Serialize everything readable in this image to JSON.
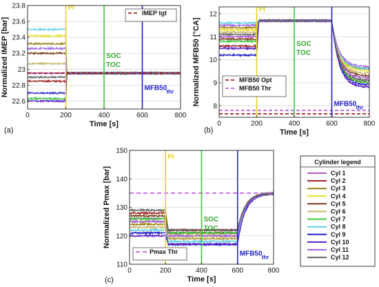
{
  "figure": {
    "legend_title": "Cylinder legend",
    "legend": [
      {
        "label": "Cyl 1",
        "color": "#b05ac8"
      },
      {
        "label": "Cyl 2",
        "color": "#a01e1e"
      },
      {
        "label": "Cyl 3",
        "color": "#9a7a0a"
      },
      {
        "label": "Cyl 4",
        "color": "#e6e022"
      },
      {
        "label": "Cyl 5",
        "color": "#7a3a1a"
      },
      {
        "label": "Cyl 6",
        "color": "#c8b46e"
      },
      {
        "label": "Cyl 7",
        "color": "#3bc83b"
      },
      {
        "label": "Cyl 8",
        "color": "#5ecfe6"
      },
      {
        "label": "Cyl 9",
        "color": "#2020c8"
      },
      {
        "label": "Cyl 10",
        "color": "#5a1ec8"
      },
      {
        "label": "Cyl 11",
        "color": "#a064e6"
      },
      {
        "label": "Cyl 12",
        "color": "#606060"
      }
    ]
  },
  "chart_data": [
    {
      "id": "a",
      "panel_label": "(a)",
      "type": "line",
      "xlabel": "Time [s]",
      "ylabel": "Normalized IMEP [bar]",
      "xlim": [
        0,
        800
      ],
      "ylim": [
        22.5,
        23.8
      ],
      "xticks": [
        0,
        200,
        400,
        600,
        800
      ],
      "yticks": [
        22.6,
        22.8,
        23,
        23.2,
        23.4,
        23.6,
        23.8
      ],
      "grid": true,
      "transition": "drop",
      "series": [
        {
          "name": "Cyl 1",
          "color": "#b05ac8",
          "values": [
            22.95,
            22.95
          ]
        },
        {
          "name": "Cyl 2",
          "color": "#a01e1e",
          "values": [
            22.85,
            22.95
          ]
        },
        {
          "name": "Cyl 3",
          "color": "#9a7a0a",
          "values": [
            23.32,
            22.95
          ]
        },
        {
          "name": "Cyl 4",
          "color": "#e6e022",
          "values": [
            23.42,
            22.95
          ]
        },
        {
          "name": "Cyl 5",
          "color": "#7a3a1a",
          "values": [
            23.2,
            22.95
          ]
        },
        {
          "name": "Cyl 6",
          "color": "#c8b46e",
          "values": [
            23.07,
            22.95
          ]
        },
        {
          "name": "Cyl 7",
          "color": "#3bc83b",
          "values": [
            22.63,
            22.95
          ]
        },
        {
          "name": "Cyl 8",
          "color": "#5ecfe6",
          "values": [
            23.5,
            22.95
          ]
        },
        {
          "name": "Cyl 9",
          "color": "#2020c8",
          "values": [
            22.7,
            22.95
          ]
        },
        {
          "name": "Cyl 10",
          "color": "#5a1ec8",
          "values": [
            22.6,
            22.95
          ]
        },
        {
          "name": "Cyl 11",
          "color": "#a064e6",
          "values": [
            23.26,
            22.95
          ]
        },
        {
          "name": "Cyl 12",
          "color": "#606060",
          "values": [
            22.9,
            22.95
          ]
        }
      ],
      "hlines": [
        {
          "name": "IMEP tgt",
          "y": 22.95,
          "color": "#a01e1e",
          "dash": "5,3"
        }
      ],
      "vlines": [
        {
          "x": 200,
          "color": "#e6d21e",
          "label": "PI",
          "label_color": "#e6d21e",
          "label_y": 23.75
        },
        {
          "x": 400,
          "color": "#3bc83b",
          "label": "SOC",
          "label2": "TOC",
          "label_color": "#2faa2f",
          "label_y": 23.14
        },
        {
          "x": 600,
          "color": "#2020c8",
          "label": "MFB50",
          "sub": "thr",
          "label_color": "#2020c8",
          "label_y": 22.74
        }
      ],
      "legend": {
        "placement": "top-right",
        "entries": [
          "IMEP tgt"
        ]
      }
    },
    {
      "id": "b",
      "panel_label": "(b)",
      "type": "line",
      "xlabel": "Time [s]",
      "ylabel": "Normalized MFB50 [°CA]",
      "xlim": [
        0,
        800
      ],
      "ylim": [
        7.5,
        12.3
      ],
      "xticks": [
        0,
        200,
        400,
        600,
        800
      ],
      "yticks": [
        8,
        9,
        10,
        11,
        12
      ],
      "grid": true,
      "transition": "rise-then-fall",
      "series": [
        {
          "name": "Cyl 1",
          "color": "#b05ac8",
          "values": [
            11.0,
            11.7,
            9.2
          ]
        },
        {
          "name": "Cyl 2",
          "color": "#a01e1e",
          "values": [
            10.6,
            11.7,
            9.0
          ]
        },
        {
          "name": "Cyl 3",
          "color": "#9a7a0a",
          "values": [
            11.4,
            11.7,
            9.6
          ]
        },
        {
          "name": "Cyl 4",
          "color": "#e6e022",
          "values": [
            11.3,
            11.7,
            9.5
          ]
        },
        {
          "name": "Cyl 5",
          "color": "#7a3a1a",
          "values": [
            10.9,
            11.7,
            9.3
          ]
        },
        {
          "name": "Cyl 6",
          "color": "#c8b46e",
          "values": [
            11.2,
            11.7,
            9.4
          ]
        },
        {
          "name": "Cyl 7",
          "color": "#3bc83b",
          "values": [
            10.8,
            11.7,
            9.0
          ]
        },
        {
          "name": "Cyl 8",
          "color": "#5ecfe6",
          "values": [
            11.6,
            11.7,
            9.6
          ]
        },
        {
          "name": "Cyl 9",
          "color": "#2020c8",
          "values": [
            10.2,
            11.7,
            8.9
          ]
        },
        {
          "name": "Cyl 10",
          "color": "#5a1ec8",
          "values": [
            10.5,
            11.7,
            8.8
          ]
        },
        {
          "name": "Cyl 11",
          "color": "#a064e6",
          "values": [
            11.5,
            11.7,
            9.7
          ]
        },
        {
          "name": "Cyl 12",
          "color": "#606060",
          "values": [
            11.1,
            11.7,
            9.1
          ]
        }
      ],
      "hlines": [
        {
          "name": "MFB50 Opt",
          "y": 7.65,
          "color": "#a01e1e",
          "dash": "5,3"
        },
        {
          "name": "MFB50 Thr",
          "y": 7.8,
          "color": "#c060e6",
          "dash": "5,3"
        }
      ],
      "vlines": [
        {
          "x": 200,
          "color": "#e6d21e",
          "label": "PI",
          "label_color": "#e6d21e",
          "label_y": 12.1
        },
        {
          "x": 400,
          "color": "#3bc83b",
          "label": "SOC",
          "label2": "TOC",
          "label_color": "#2faa2f",
          "label_y": 10.6
        },
        {
          "x": 600,
          "color": "#2020c8",
          "label": "MFB50",
          "sub": "thr",
          "label_color": "#2020c8",
          "label_y": 8.0
        }
      ],
      "legend": {
        "placement": "bottom-left",
        "entries": [
          "MFB50 Opt",
          "MFB50 Thr"
        ]
      }
    },
    {
      "id": "c",
      "panel_label": "(c)",
      "type": "line",
      "xlabel": "Time [s]",
      "ylabel": "Normalized Pmax [bar]",
      "xlim": [
        0,
        800
      ],
      "ylim": [
        110,
        150
      ],
      "xticks": [
        0,
        200,
        400,
        600,
        800
      ],
      "yticks": [
        110,
        120,
        130,
        140,
        150
      ],
      "grid": true,
      "transition": "drop-then-rise",
      "series": [
        {
          "name": "Cyl 1",
          "color": "#b05ac8",
          "values": [
            126,
            120,
            135
          ]
        },
        {
          "name": "Cyl 2",
          "color": "#a01e1e",
          "values": [
            128,
            122,
            135
          ]
        },
        {
          "name": "Cyl 3",
          "color": "#9a7a0a",
          "values": [
            124,
            119,
            135
          ]
        },
        {
          "name": "Cyl 4",
          "color": "#e6e022",
          "values": [
            125,
            120,
            135
          ]
        },
        {
          "name": "Cyl 5",
          "color": "#7a3a1a",
          "values": [
            127,
            121,
            135
          ]
        },
        {
          "name": "Cyl 6",
          "color": "#c8b46e",
          "values": [
            123,
            119,
            135
          ]
        },
        {
          "name": "Cyl 7",
          "color": "#3bc83b",
          "values": [
            126,
            121,
            135
          ]
        },
        {
          "name": "Cyl 8",
          "color": "#5ecfe6",
          "values": [
            122,
            118,
            135
          ]
        },
        {
          "name": "Cyl 9",
          "color": "#2020c8",
          "values": [
            121,
            117,
            135
          ]
        },
        {
          "name": "Cyl 10",
          "color": "#5a1ec8",
          "values": [
            120,
            117,
            135
          ]
        },
        {
          "name": "Cyl 11",
          "color": "#a064e6",
          "values": [
            125,
            120,
            135
          ]
        },
        {
          "name": "Cyl 12",
          "color": "#606060",
          "values": [
            129,
            122,
            135
          ]
        }
      ],
      "hlines": [
        {
          "name": "Pmax Thr",
          "y": 135,
          "color": "#c060e6",
          "dash": "6,4"
        }
      ],
      "vlines": [
        {
          "x": 200,
          "color": "#e6d21e",
          "label": "PI",
          "label_color": "#e6d21e",
          "label_y": 147
        },
        {
          "x": 400,
          "color": "#3bc83b",
          "label": "SOC",
          "label2": "TOC",
          "label_color": "#2faa2f",
          "label_y": 125
        },
        {
          "x": 600,
          "color": "#2020c8",
          "label": "MFB50",
          "sub": "thr",
          "label_color": "#2020c8",
          "label_y": 113
        }
      ],
      "legend": {
        "placement": "bottom-left",
        "entries": [
          "Pmax Thr"
        ]
      }
    }
  ]
}
